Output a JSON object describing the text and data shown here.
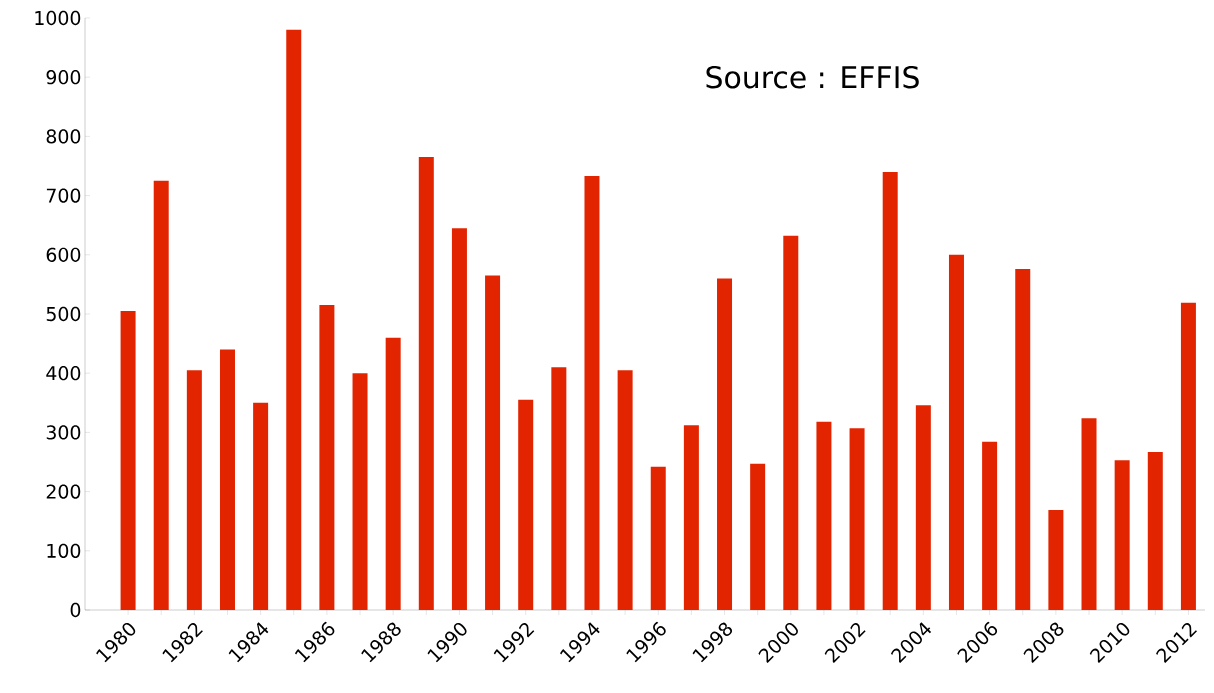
{
  "chart_data": {
    "type": "bar",
    "categories": [
      "1980",
      null,
      "1982",
      null,
      "1984",
      null,
      "1986",
      null,
      "1988",
      null,
      "1990",
      null,
      "1992",
      null,
      "1994",
      null,
      "1996",
      null,
      "1998",
      null,
      "2000",
      null,
      "2002",
      null,
      "2004",
      null,
      "2006",
      null,
      "2008",
      null,
      "2010",
      null,
      "2012"
    ],
    "values": [
      505,
      725,
      405,
      440,
      350,
      980,
      515,
      400,
      460,
      765,
      645,
      565,
      355,
      410,
      733,
      405,
      242,
      312,
      560,
      247,
      632,
      318,
      307,
      740,
      346,
      600,
      284,
      576,
      169,
      324,
      253,
      267,
      519
    ],
    "color": "#e32400",
    "ylim": [
      0,
      1000
    ],
    "yticks": [
      0,
      100,
      200,
      300,
      400,
      500,
      600,
      700,
      800,
      900,
      1000
    ],
    "grid": false,
    "annotations": [
      "Source : EFFIS"
    ]
  }
}
